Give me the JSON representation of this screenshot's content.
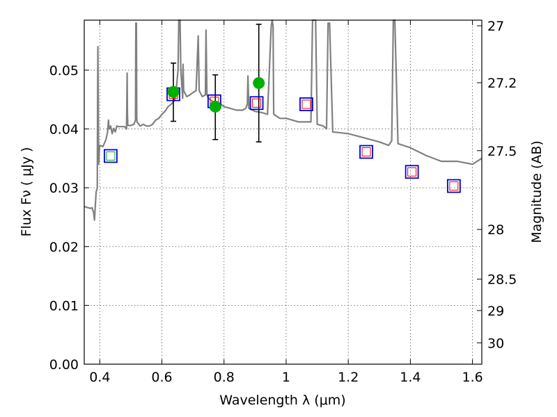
{
  "chart_data": {
    "type": "scatter",
    "xlabel": "Wavelength  λ (μm)",
    "ylabel": "Flux  Fν  ( μJy )",
    "ylabel_right": "Magnitude (AB)",
    "xlim": [
      0.35,
      1.63
    ],
    "ylim": [
      0.0,
      0.0585
    ],
    "x_ticks": [
      {
        "value": 0.4,
        "label": "0.4"
      },
      {
        "value": 0.6,
        "label": "0.6"
      },
      {
        "value": 0.8,
        "label": "0.8"
      },
      {
        "value": 1.0,
        "label": "1"
      },
      {
        "value": 1.2,
        "label": "1.2"
      },
      {
        "value": 1.4,
        "label": "1.4"
      },
      {
        "value": 1.6,
        "label": "1.6"
      }
    ],
    "y_ticks": [
      {
        "value": 0.0,
        "label": "0.00"
      },
      {
        "value": 0.01,
        "label": "0.01"
      },
      {
        "value": 0.02,
        "label": "0.02"
      },
      {
        "value": 0.03,
        "label": "0.03"
      },
      {
        "value": 0.04,
        "label": "0.04"
      },
      {
        "value": 0.05,
        "label": "0.05"
      }
    ],
    "right_ticks": [
      {
        "mag": 27.0,
        "label": "27"
      },
      {
        "mag": 27.2,
        "label": "27.2"
      },
      {
        "mag": 27.5,
        "label": "27.5"
      },
      {
        "mag": 28.0,
        "label": "28"
      },
      {
        "mag": 28.5,
        "label": "28.5"
      },
      {
        "mag": 29.0,
        "label": "29"
      },
      {
        "mag": 30.0,
        "label": "30"
      }
    ],
    "grid": true,
    "colors": {
      "sed": "#808080",
      "observed": "#00b000",
      "model_box": "#0000dd",
      "inner_box": "#ee0000",
      "inner_box_green": "#00b000"
    },
    "series": [
      {
        "style": "line",
        "x": [
          0.35,
          0.37,
          0.375,
          0.38,
          0.383,
          0.385,
          0.388,
          0.392,
          0.393,
          0.394,
          0.395,
          0.396,
          0.397,
          0.398,
          0.4,
          0.41,
          0.42,
          0.425,
          0.428,
          0.43,
          0.435,
          0.44,
          0.445,
          0.45,
          0.455,
          0.46,
          0.47,
          0.48,
          0.486,
          0.487,
          0.488,
          0.489,
          0.49,
          0.5,
          0.51,
          0.515,
          0.516,
          0.517,
          0.518,
          0.519,
          0.52,
          0.53,
          0.54,
          0.55,
          0.56,
          0.57,
          0.58,
          0.59,
          0.6,
          0.61,
          0.62,
          0.63,
          0.64,
          0.645,
          0.652,
          0.6545,
          0.6565,
          0.6585,
          0.661,
          0.667,
          0.668,
          0.67,
          0.68,
          0.69,
          0.7,
          0.71,
          0.717,
          0.72,
          0.73,
          0.74,
          0.742,
          0.745,
          0.75,
          0.76,
          0.77,
          0.78,
          0.79,
          0.8,
          0.82,
          0.84,
          0.86,
          0.87,
          0.875,
          0.877,
          0.88,
          0.9,
          0.92,
          0.94,
          0.952,
          0.955,
          0.958,
          0.96,
          0.98,
          1.0,
          1.02,
          1.04,
          1.06,
          1.08,
          1.085,
          1.09,
          1.095,
          1.1,
          1.12,
          1.13,
          1.135,
          1.14,
          1.15,
          1.2,
          1.25,
          1.3,
          1.33,
          1.34,
          1.345,
          1.35,
          1.36,
          1.4,
          1.45,
          1.5,
          1.55,
          1.6,
          1.63
        ],
        "y": [
          0.0268,
          0.0265,
          0.0266,
          0.0258,
          0.0245,
          0.0263,
          0.0292,
          0.03,
          0.045,
          0.054,
          0.0452,
          0.034,
          0.0345,
          0.036,
          0.0372,
          0.037,
          0.0382,
          0.0395,
          0.0415,
          0.04,
          0.0405,
          0.0392,
          0.0401,
          0.0395,
          0.0405,
          0.0404,
          0.0404,
          0.0404,
          0.04,
          0.0435,
          0.0495,
          0.043,
          0.0406,
          0.0406,
          0.0408,
          0.0415,
          0.058,
          0.0422,
          0.058,
          0.042,
          0.0412,
          0.0405,
          0.0408,
          0.0405,
          0.0405,
          0.0408,
          0.0415,
          0.0418,
          0.0425,
          0.043,
          0.0438,
          0.0442,
          0.0448,
          0.046,
          0.05,
          0.059,
          0.059,
          0.059,
          0.05,
          0.0452,
          0.051,
          0.0465,
          0.0455,
          0.0458,
          0.0462,
          0.0465,
          0.0558,
          0.0465,
          0.0455,
          0.0458,
          0.0568,
          0.0458,
          0.0452,
          0.0448,
          0.0445,
          0.044,
          0.0442,
          0.0438,
          0.0435,
          0.0432,
          0.0432,
          0.0435,
          0.0442,
          0.049,
          0.0435,
          0.043,
          0.0428,
          0.0425,
          0.0575,
          0.059,
          0.0575,
          0.0425,
          0.0418,
          0.0418,
          0.0415,
          0.0412,
          0.0412,
          0.0412,
          0.0585,
          0.0585,
          0.0585,
          0.0408,
          0.0405,
          0.04,
          0.058,
          0.058,
          0.0395,
          0.0392,
          0.0385,
          0.0378,
          0.0372,
          0.038,
          0.0585,
          0.0585,
          0.0375,
          0.0368,
          0.0355,
          0.0345,
          0.0345,
          0.034,
          0.035
        ]
      },
      {
        "style": "errorbar-points",
        "x": [
          0.637,
          0.772,
          0.912
        ],
        "y": [
          0.0463,
          0.0438,
          0.0478
        ],
        "yerr_low": [
          0.0413,
          0.0382,
          0.0378
        ],
        "yerr_high": [
          0.0512,
          0.0492,
          0.0578
        ]
      },
      {
        "style": "open-squares",
        "x": [
          0.435,
          0.637,
          0.769,
          0.905,
          1.065,
          1.258,
          1.405,
          1.54
        ],
        "y": [
          0.0354,
          0.0459,
          0.0447,
          0.0444,
          0.0442,
          0.0361,
          0.0327,
          0.0303
        ],
        "inner": [
          "green",
          "red",
          "red",
          "red",
          "red",
          "red",
          "red",
          "red"
        ]
      }
    ]
  }
}
